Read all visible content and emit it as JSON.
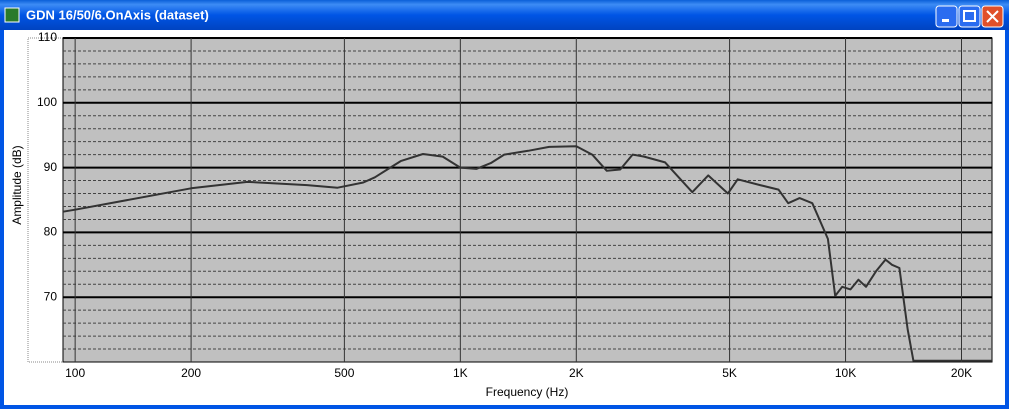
{
  "window_title": "GDN 16/50/6.OnAxis (dataset)",
  "chart_data": {
    "type": "line",
    "xlabel": "Frequency (Hz)",
    "ylabel": "Amplitude (dB)",
    "xscale": "log",
    "grid": true,
    "xlim": [
      93,
      24000
    ],
    "ylim": [
      60,
      110
    ],
    "xticks": [
      {
        "value": 100,
        "label": "100"
      },
      {
        "value": 200,
        "label": "200"
      },
      {
        "value": 500,
        "label": "500"
      },
      {
        "value": 1000,
        "label": "1K"
      },
      {
        "value": 2000,
        "label": "2K"
      },
      {
        "value": 5000,
        "label": "5K"
      },
      {
        "value": 10000,
        "label": "10K"
      },
      {
        "value": 20000,
        "label": "20K"
      }
    ],
    "yticks": [
      70,
      80,
      90,
      100,
      110
    ],
    "minor_yticks": [
      62,
      64,
      66,
      68,
      72,
      74,
      76,
      78,
      82,
      84,
      86,
      88,
      92,
      94,
      96,
      98,
      102,
      104,
      106,
      108
    ],
    "x": [
      93,
      100,
      200,
      280,
      400,
      480,
      560,
      600,
      700,
      800,
      900,
      1000,
      1100,
      1200,
      1300,
      1500,
      1700,
      2000,
      2200,
      2400,
      2600,
      2800,
      3000,
      3400,
      4000,
      4400,
      4950,
      5250,
      6000,
      6700,
      7100,
      7600,
      8200,
      9000,
      9400,
      9800,
      10300,
      10800,
      11300,
      12000,
      12700,
      13200,
      13800,
      14500,
      15000,
      24000
    ],
    "series": [
      {
        "color": "#333333",
        "values": [
          83.2,
          83.5,
          86.8,
          87.8,
          87.3,
          86.9,
          87.7,
          88.5,
          91,
          92.1,
          91.7,
          90,
          89.8,
          90.7,
          92,
          92.6,
          93.2,
          93.3,
          92,
          89.5,
          89.7,
          92,
          91.7,
          90.8,
          86.2,
          88.8,
          86,
          88.2,
          87.3,
          86.6,
          84.5,
          85.3,
          84.5,
          79,
          70.2,
          71.6,
          71.2,
          72.7,
          71.6,
          74,
          75.8,
          75,
          74.5,
          65,
          60.2,
          60.2
        ]
      }
    ]
  }
}
